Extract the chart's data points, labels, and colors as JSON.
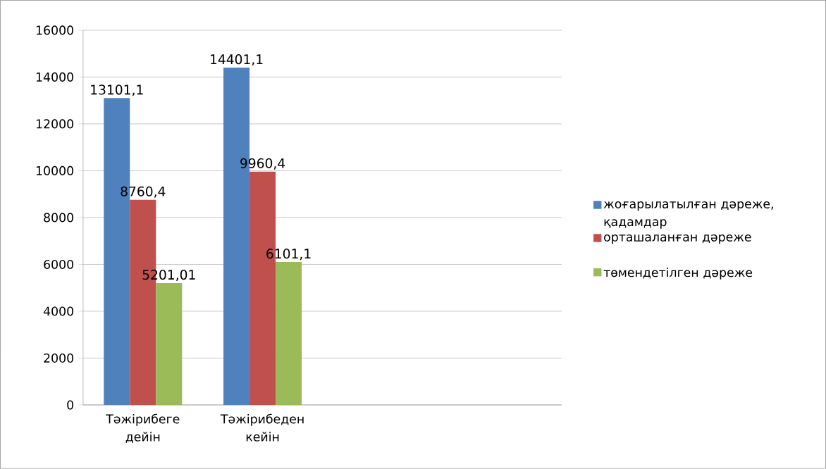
{
  "chart_data": {
    "type": "bar",
    "categories": [
      "Тәжірибеге дейін",
      "Тәжірибеден кейін",
      null,
      null
    ],
    "series": [
      {
        "name": "жоғарылатылған дәреже, қадамдар",
        "color": "#4f81bd",
        "values": [
          13101.1,
          14401.1,
          null,
          null
        ],
        "value_labels": [
          "13101,1",
          "14401,1",
          null,
          null
        ]
      },
      {
        "name": "орташаланған дәреже",
        "color": "#c0504d",
        "values": [
          8760.4,
          9960.4,
          null,
          null
        ],
        "value_labels": [
          "8760,4",
          "9960,4",
          null,
          null
        ]
      },
      {
        "name": "төмендетілген дәреже",
        "color": "#9bbb59",
        "values": [
          5201.01,
          6101.1,
          null,
          null
        ],
        "value_labels": [
          "5201,01",
          "6101,1",
          null,
          null
        ]
      }
    ],
    "ylim": [
      0,
      16000
    ],
    "yticks": [
      0,
      2000,
      4000,
      6000,
      8000,
      10000,
      12000,
      14000,
      16000
    ],
    "grid": "y",
    "legend": "right"
  }
}
